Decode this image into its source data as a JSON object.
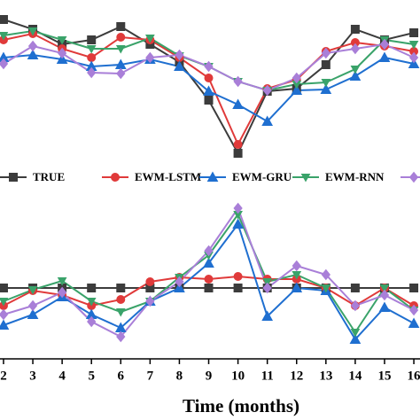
{
  "chart_data": [
    {
      "type": "line",
      "x": [
        2,
        3,
        4,
        5,
        6,
        7,
        8,
        9,
        10,
        11,
        12,
        13,
        14,
        15,
        16
      ],
      "xlim": [
        1.88,
        16.21
      ],
      "ylim": [
        0,
        190
      ],
      "series": [
        {
          "name": "TRUE",
          "color": "#3c3c3c",
          "values": [
            168,
            157,
            140,
            145,
            160,
            140,
            120,
            77,
            17,
            87,
            90,
            117,
            157,
            145,
            153
          ]
        },
        {
          "name": "EWM-LSTM",
          "color": "#e03a3a",
          "values": [
            145,
            152,
            135,
            125,
            148,
            145,
            125,
            102,
            27,
            90,
            100,
            132,
            142,
            138,
            132
          ]
        },
        {
          "name": "EWM-GRU",
          "color": "#1f6fd0",
          "values": [
            125,
            128,
            123,
            115,
            117,
            123,
            115,
            87,
            72,
            53,
            88,
            89,
            104,
            125,
            118
          ]
        },
        {
          "name": "EWM-RNN",
          "color": "#3aa36a",
          "values": [
            150,
            155,
            145,
            135,
            135,
            147,
            127,
            115,
            98,
            88,
            95,
            97,
            112,
            145,
            140
          ]
        },
        {
          "color": "#a97fd8",
          "values": [
            118,
            138,
            130,
            108,
            107,
            125,
            128,
            115,
            98,
            88,
            102,
            130,
            135,
            140,
            125
          ]
        }
      ]
    },
    {
      "type": "line",
      "x": [
        2,
        3,
        4,
        5,
        6,
        7,
        8,
        9,
        10,
        11,
        12,
        13,
        14,
        15,
        16
      ],
      "xlim": [
        1.88,
        16.21
      ],
      "ylim": [
        0,
        205
      ],
      "xticks": [
        2,
        3,
        4,
        5,
        6,
        7,
        8,
        9,
        10,
        11,
        12,
        13,
        14,
        15,
        16
      ],
      "xlabel": "Time (months)",
      "series": [
        {
          "name": "TRUE",
          "color": "#3c3c3c",
          "values": [
            80,
            80,
            80,
            80,
            80,
            80,
            80,
            80,
            80,
            80,
            80,
            80,
            80,
            80,
            80
          ]
        },
        {
          "name": "EWM-LSTM",
          "color": "#e03a3a",
          "values": [
            60,
            77,
            72,
            60,
            67,
            87,
            92,
            90,
            93,
            90,
            90,
            80,
            60,
            80,
            60
          ]
        },
        {
          "name": "EWM-GRU",
          "color": "#1f6fd0",
          "values": [
            38,
            50,
            70,
            50,
            35,
            65,
            80,
            108,
            152,
            48,
            80,
            77,
            22,
            58,
            40
          ]
        },
        {
          "name": "EWM-RNN",
          "color": "#3aa36a",
          "values": [
            65,
            78,
            88,
            65,
            53,
            65,
            92,
            117,
            163,
            87,
            95,
            80,
            30,
            80,
            55
          ]
        },
        {
          "color": "#a97fd8",
          "values": [
            50,
            60,
            75,
            42,
            25,
            65,
            87,
            122,
            170,
            80,
            105,
            95,
            60,
            72,
            55
          ]
        }
      ]
    }
  ]
}
